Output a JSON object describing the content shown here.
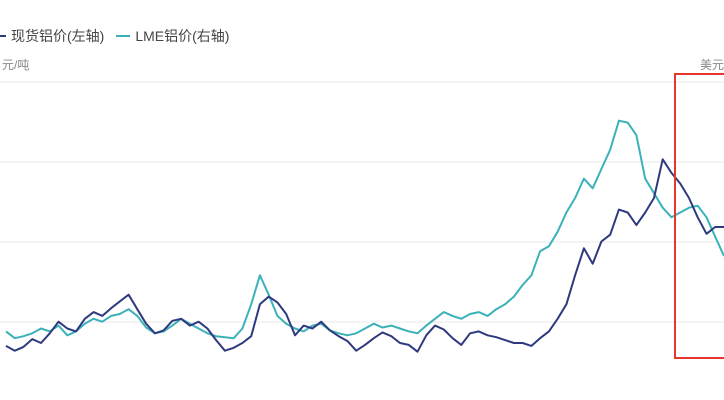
{
  "chart_data": {
    "type": "line",
    "title": "",
    "legend": "top-left",
    "grid": true,
    "left_axis_unit": "元/吨",
    "right_axis_unit": "美元",
    "series": [
      {
        "name": "现货铝价(左轴)",
        "color": "#2f3a7e",
        "axis": "left",
        "values": [
          27,
          22,
          26,
          34,
          30,
          40,
          52,
          45,
          42,
          55,
          62,
          58,
          66,
          73,
          80,
          65,
          50,
          40,
          43,
          53,
          55,
          48,
          52,
          45,
          33,
          22,
          25,
          30,
          37,
          70,
          78,
          72,
          60,
          38,
          48,
          45,
          52,
          43,
          37,
          32,
          22,
          28,
          35,
          41,
          37,
          30,
          28,
          21,
          38,
          48,
          44,
          35,
          28,
          40,
          42,
          38,
          36,
          33,
          30,
          30,
          27,
          35,
          42,
          55,
          70,
          100,
          128,
          112,
          135,
          142,
          168,
          165,
          152,
          165,
          180,
          220,
          206,
          195,
          180,
          160,
          143,
          150,
          150
        ]
      },
      {
        "name": "LME铝价(右轴)",
        "color": "#3bb1b9",
        "axis": "right",
        "values": [
          42,
          35,
          37,
          40,
          45,
          42,
          48,
          38,
          42,
          50,
          55,
          52,
          58,
          60,
          65,
          58,
          46,
          40,
          42,
          48,
          55,
          50,
          45,
          40,
          37,
          36,
          35,
          45,
          70,
          100,
          80,
          58,
          50,
          45,
          42,
          48,
          50,
          43,
          40,
          38,
          40,
          45,
          50,
          46,
          48,
          45,
          42,
          40,
          48,
          55,
          62,
          58,
          55,
          60,
          62,
          58,
          65,
          70,
          78,
          90,
          100,
          125,
          130,
          145,
          165,
          180,
          200,
          190,
          210,
          230,
          260,
          258,
          245,
          200,
          185,
          170,
          160,
          165,
          170,
          172,
          160,
          140,
          120
        ]
      }
    ],
    "ylim": [
      0,
      300
    ]
  },
  "highlight_box": {
    "label": "",
    "color": "#e8352e"
  }
}
